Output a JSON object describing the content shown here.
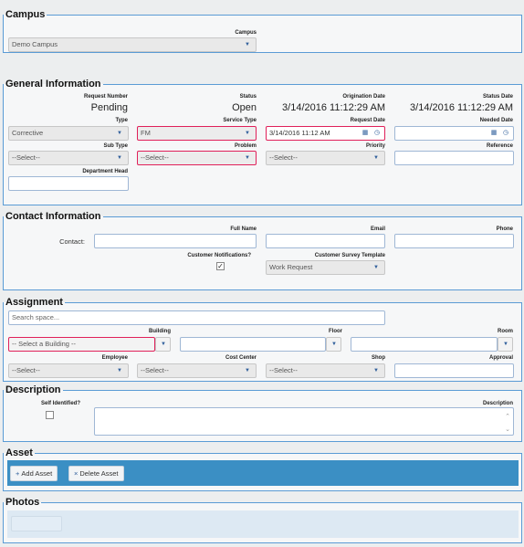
{
  "campus": {
    "legend": "Campus",
    "label": "Campus",
    "value": "Demo Campus"
  },
  "general": {
    "legend": "General Information",
    "request_number_label": "Request Number",
    "request_number_value": "Pending",
    "status_label": "Status",
    "status_value": "Open",
    "origination_label": "Origination Date",
    "origination_value": "3/14/2016 11:12:29 AM",
    "status_date_label": "Status Date",
    "status_date_value": "3/14/2016 11:12:29 AM",
    "type_label": "Type",
    "type_value": "Corrective",
    "service_type_label": "Service Type",
    "service_type_value": "FM",
    "request_date_label": "Request Date",
    "request_date_value": "3/14/2016 11:12 AM",
    "needed_date_label": "Needed Date",
    "needed_date_value": "",
    "subtype_label": "Sub Type",
    "subtype_value": "--Select--",
    "problem_label": "Problem",
    "problem_value": "--Select--",
    "priority_label": "Priority",
    "priority_value": "--Select--",
    "reference_label": "Reference",
    "reference_value": "",
    "dept_head_label": "Department Head",
    "dept_head_value": ""
  },
  "contact": {
    "legend": "Contact Information",
    "full_name_label": "Full Name",
    "email_label": "Email",
    "phone_label": "Phone",
    "contact_label": "Contact:",
    "notifications_label": "Customer Notifications?",
    "notifications_checked": "✓",
    "survey_label": "Customer Survey Template",
    "survey_value": "Work Request"
  },
  "assignment": {
    "legend": "Assignment",
    "search_placeholder": "Search space...",
    "building_label": "Building",
    "building_value": "-- Select a Building --",
    "floor_label": "Floor",
    "room_label": "Room",
    "employee_label": "Employee",
    "employee_value": "--Select--",
    "cost_center_label": "Cost Center",
    "cost_center_value": "--Select--",
    "shop_label": "Shop",
    "shop_value": "--Select--",
    "approval_label": "Approval"
  },
  "description": {
    "legend": "Description",
    "self_identified_label": "Self Identified?",
    "description_label": "Description"
  },
  "asset": {
    "legend": "Asset",
    "add_label": "Add Asset",
    "delete_label": "Delete Asset"
  },
  "photos": {
    "legend": "Photos"
  },
  "icons": {
    "dropdown": "caret-down-icon",
    "calendar": "calendar-icon",
    "clock": "clock-icon",
    "plus": "plus-icon",
    "times": "times-icon"
  },
  "colors": {
    "border": "#5a9bd5",
    "required": "#e0205a",
    "asset_bar": "#3b8fc4"
  }
}
